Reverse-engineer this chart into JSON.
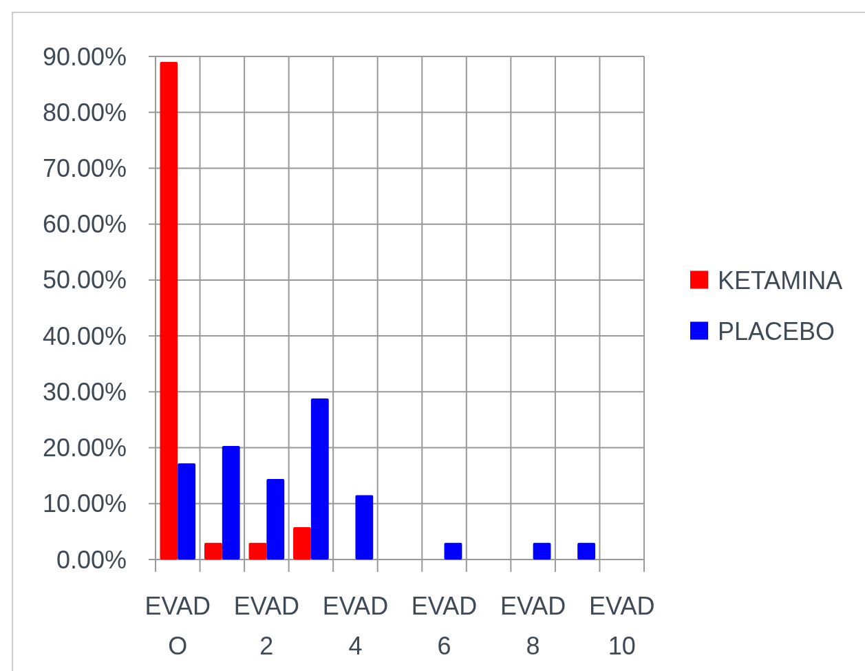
{
  "chart_data": {
    "type": "bar",
    "categories": [
      "EVAD O",
      null,
      "EVAD 2",
      null,
      "EVAD 4",
      null,
      "EVAD 6",
      null,
      "EVAD 8",
      null,
      "EVAD 10"
    ],
    "series": [
      {
        "name": "KETAMINA",
        "color": "#ff0000",
        "values": [
          89,
          3,
          3,
          5.8,
          0,
          0,
          0,
          0,
          0,
          0,
          0
        ]
      },
      {
        "name": "PLACEBO",
        "color": "#0000ff",
        "values": [
          17.2,
          20.3,
          14.4,
          28.8,
          11.5,
          0,
          3,
          0,
          3,
          3,
          0
        ]
      }
    ],
    "ylim": [
      0,
      90
    ],
    "yticks": [
      {
        "value": 0,
        "label": "0.00%"
      },
      {
        "value": 10,
        "label": "10.00%"
      },
      {
        "value": 20,
        "label": "20.00%"
      },
      {
        "value": 30,
        "label": "30.00%"
      },
      {
        "value": 40,
        "label": "40.00%"
      },
      {
        "value": 50,
        "label": "50.00%"
      },
      {
        "value": 60,
        "label": "60.00%"
      },
      {
        "value": 70,
        "label": "70.00%"
      },
      {
        "value": 80,
        "label": "80.00%"
      },
      {
        "value": 90,
        "label": "90.00%"
      }
    ],
    "grid": true,
    "legend": "right"
  }
}
